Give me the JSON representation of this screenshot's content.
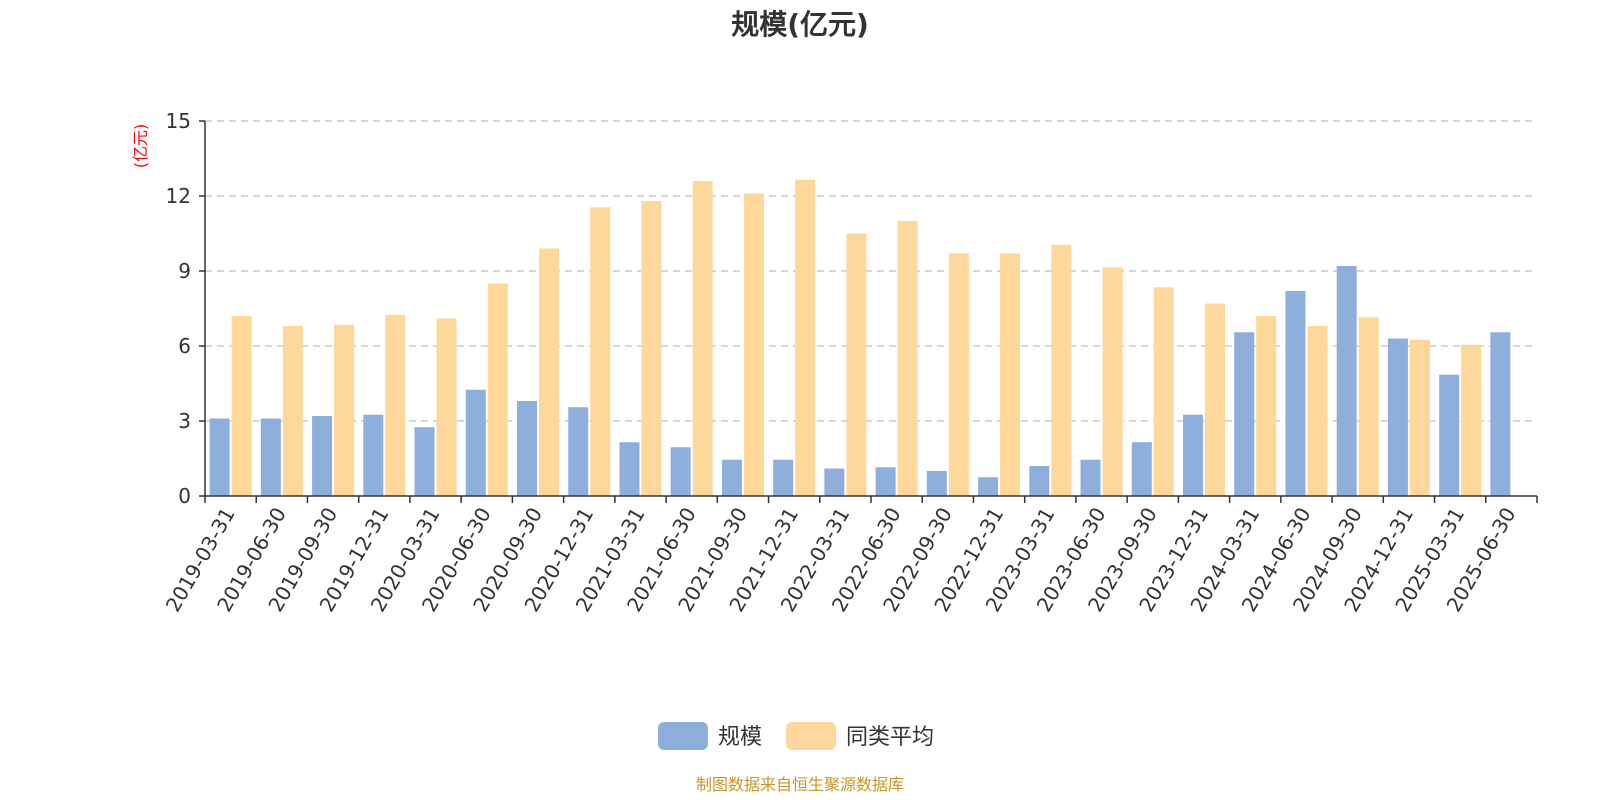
{
  "colors": {
    "series_1": "#8eaedc",
    "series_2": "#fed89a",
    "unit": "#ff0000",
    "source": "#c8962a",
    "grid": "#cccccc",
    "axis": "#333333"
  },
  "chart_data": {
    "type": "bar",
    "title": "规模(亿元)",
    "ylabel": "(亿元)",
    "xlabel": "",
    "ylim": [
      0,
      15
    ],
    "yticks": [
      0,
      3,
      6,
      9,
      12,
      15
    ],
    "grid": true,
    "legend_position": "bottom-center",
    "categories": [
      "2019-03-31",
      "2019-06-30",
      "2019-09-30",
      "2019-12-31",
      "2020-03-31",
      "2020-06-30",
      "2020-09-30",
      "2020-12-31",
      "2021-03-31",
      "2021-06-30",
      "2021-09-30",
      "2021-12-31",
      "2022-03-31",
      "2022-06-30",
      "2022-09-30",
      "2022-12-31",
      "2023-03-31",
      "2023-06-30",
      "2023-09-30",
      "2023-12-31",
      "2024-03-31",
      "2024-06-30",
      "2024-09-30",
      "2024-12-31",
      "2025-03-31",
      "2025-06-30"
    ],
    "series": [
      {
        "name": "规模",
        "values": [
          3.1,
          3.1,
          3.2,
          3.25,
          2.75,
          4.25,
          3.8,
          3.55,
          2.15,
          1.95,
          1.45,
          1.45,
          1.1,
          1.15,
          1.0,
          0.75,
          1.2,
          1.45,
          2.15,
          3.25,
          6.55,
          8.2,
          9.2,
          6.3,
          4.85,
          6.55
        ]
      },
      {
        "name": "同类平均",
        "values": [
          7.2,
          6.8,
          6.85,
          7.25,
          7.1,
          8.5,
          9.9,
          11.55,
          11.8,
          12.6,
          12.1,
          12.65,
          10.5,
          11.0,
          9.7,
          9.7,
          10.05,
          9.15,
          8.35,
          7.7,
          7.2,
          6.8,
          7.15,
          6.25,
          6.05,
          null
        ]
      }
    ]
  },
  "footer": {
    "source_text": "制图数据来自恒生聚源数据库"
  }
}
